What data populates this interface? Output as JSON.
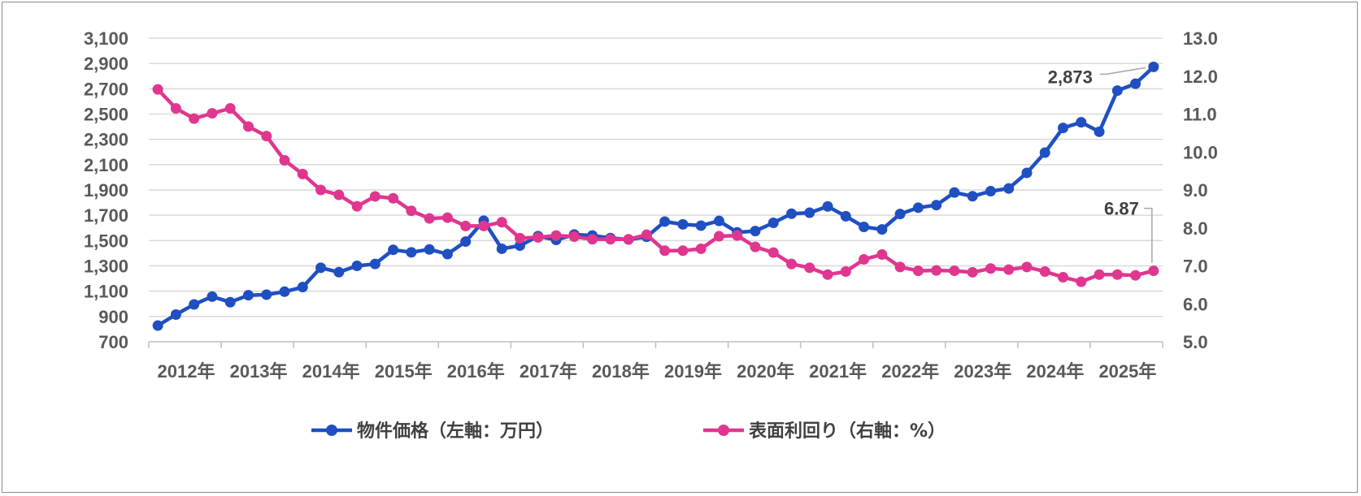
{
  "chart_data": {
    "type": "line",
    "title": "",
    "categories": [
      "2012年",
      "2013年",
      "2014年",
      "2015年",
      "2016年",
      "2017年",
      "2018年",
      "2019年",
      "2020年",
      "2021年",
      "2022年",
      "2023年",
      "2024年",
      "2025年"
    ],
    "x_range": [
      2012.0,
      2026.0
    ],
    "left_axis": {
      "label": "物件価格（左軸：万円）",
      "range": [
        700,
        3100
      ],
      "ticks": [
        "3,100",
        "2,900",
        "2,700",
        "2,500",
        "2,300",
        "2,100",
        "1,900",
        "1,700",
        "1,500",
        "1,300",
        "1,100",
        "900",
        "700"
      ]
    },
    "right_axis": {
      "label": "表面利回り（右軸：%）",
      "range": [
        5.0,
        13.0
      ],
      "ticks": [
        "13.0",
        "12.0",
        "11.0",
        "10.0",
        "9.0",
        "8.0",
        "7.0",
        "6.0",
        "5.0"
      ]
    },
    "series": [
      {
        "name": "物件価格（左軸：万円）",
        "axis": "left",
        "color": "#1f4fc1",
        "x": [
          2012.125,
          2012.375,
          2012.625,
          2012.875,
          2013.125,
          2013.375,
          2013.625,
          2013.875,
          2014.125,
          2014.375,
          2014.625,
          2014.875,
          2015.125,
          2015.375,
          2015.625,
          2015.875,
          2016.125,
          2016.375,
          2016.625,
          2016.875,
          2017.125,
          2017.375,
          2017.625,
          2017.875,
          2018.125,
          2018.375,
          2018.625,
          2018.875,
          2019.125,
          2019.375,
          2019.625,
          2019.875,
          2020.125,
          2020.375,
          2020.625,
          2020.875,
          2021.125,
          2021.375,
          2021.625,
          2021.875,
          2022.125,
          2022.375,
          2022.625,
          2022.875,
          2023.125,
          2023.375,
          2023.625,
          2023.875,
          2024.125,
          2024.375,
          2024.625,
          2024.875,
          2025.125,
          2025.375,
          2025.625,
          2025.875
        ],
        "values": [
          828,
          915,
          995,
          1057,
          1013,
          1068,
          1072,
          1096,
          1132,
          1285,
          1250,
          1300,
          1315,
          1427,
          1407,
          1430,
          1393,
          1492,
          1657,
          1435,
          1460,
          1535,
          1505,
          1548,
          1540,
          1520,
          1508,
          1530,
          1650,
          1628,
          1618,
          1655,
          1565,
          1575,
          1640,
          1712,
          1720,
          1770,
          1692,
          1608,
          1588,
          1710,
          1760,
          1780,
          1880,
          1850,
          1890,
          1912,
          2035,
          2195,
          2390,
          2435,
          2360,
          2685,
          2740,
          2873
        ]
      },
      {
        "name": "表面利回り（右軸：%）",
        "axis": "right",
        "color": "#e0368f",
        "x": [
          2012.125,
          2012.375,
          2012.625,
          2012.875,
          2013.125,
          2013.375,
          2013.625,
          2013.875,
          2014.125,
          2014.375,
          2014.625,
          2014.875,
          2015.125,
          2015.375,
          2015.625,
          2015.875,
          2016.125,
          2016.375,
          2016.625,
          2016.875,
          2017.125,
          2017.375,
          2017.625,
          2017.875,
          2018.125,
          2018.375,
          2018.625,
          2018.875,
          2019.125,
          2019.375,
          2019.625,
          2019.875,
          2020.125,
          2020.375,
          2020.625,
          2020.875,
          2021.125,
          2021.375,
          2021.625,
          2021.875,
          2022.125,
          2022.375,
          2022.625,
          2022.875,
          2023.125,
          2023.375,
          2023.625,
          2023.875,
          2024.125,
          2024.375,
          2024.625,
          2024.875,
          2025.125,
          2025.375,
          2025.625,
          2025.875
        ],
        "values": [
          11.65,
          11.15,
          10.88,
          11.02,
          11.15,
          10.67,
          10.42,
          9.78,
          9.42,
          9.0,
          8.87,
          8.57,
          8.83,
          8.78,
          8.45,
          8.25,
          8.27,
          8.05,
          8.05,
          8.15,
          7.73,
          7.75,
          7.8,
          7.77,
          7.7,
          7.7,
          7.7,
          7.82,
          7.4,
          7.4,
          7.45,
          7.78,
          7.8,
          7.5,
          7.35,
          7.05,
          6.95,
          6.77,
          6.85,
          7.17,
          7.3,
          6.97,
          6.87,
          6.88,
          6.87,
          6.83,
          6.93,
          6.9,
          6.97,
          6.85,
          6.7,
          6.58,
          6.77,
          6.77,
          6.75,
          6.87
        ]
      }
    ],
    "annotations": [
      {
        "series": 0,
        "point": 55,
        "text": "2,873"
      },
      {
        "series": 1,
        "point": 55,
        "text": "6.87"
      }
    ],
    "gridlines": true,
    "legend_position": "bottom"
  }
}
